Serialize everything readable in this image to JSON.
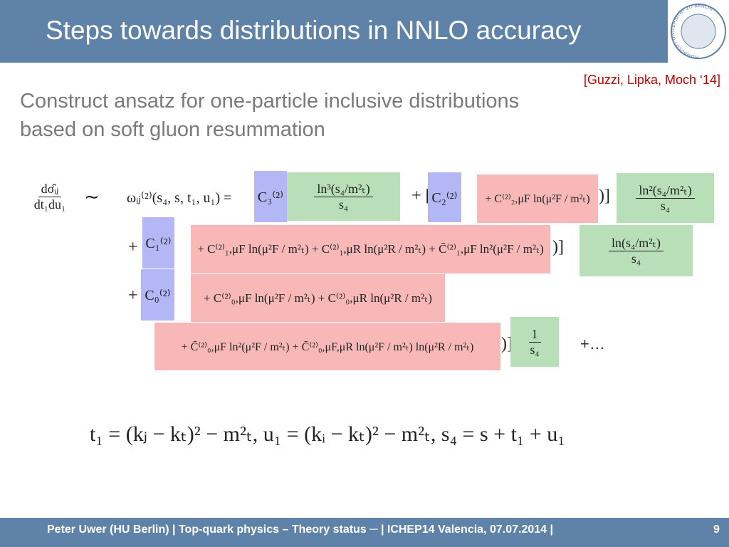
{
  "header": {
    "title": "Steps towards distributions in NNLO accuracy",
    "logo_text": "HUMBOLDT-UNIVERSITÄT ZU BERLIN"
  },
  "citation": "[Guzzi, Lipka, Moch ‘14]",
  "body": {
    "lines": [
      "Construct ansatz for one-particle inclusive distributions",
      "based on soft gluon resummation"
    ]
  },
  "equation": {
    "lhs_num": "dσ̂ᵢⱼ",
    "lhs_den": "dt₁du₁",
    "sim": "∼",
    "omega": "ωᵢⱼ⁽²⁾(s₄, s, t₁, u₁) =",
    "row1": {
      "c3": "C₃⁽²⁾",
      "f1_num": "ln³(s₄/m²ₜ)",
      "f1_den": "s₄",
      "plus_open": "+ [",
      "c2": "C₂⁽²⁾",
      "red": "+ C⁽²⁾₂,μF ln(μ²F / m²ₜ)",
      "close": ")]",
      "f2_num": "ln²(s₄/m²ₜ)",
      "f2_den": "s₄"
    },
    "row2": {
      "plus_open": "+ [",
      "c1": "C₁⁽²⁾",
      "red": "+ C⁽²⁾₁,μF ln(μ²F / m²ₜ) + C⁽²⁾₁,μR ln(μ²R / m²ₜ) + C̄⁽²⁾₁,μF ln²(μ²F / m²ₜ)",
      "close": ")]",
      "f_num": "ln(s₄/m²ₜ)",
      "f_den": "s₄"
    },
    "row3": {
      "plus_open": "+ [",
      "c0": "C₀⁽²⁾",
      "red": "+ C⁽²⁾₀,μF ln(μ²F / m²ₜ) + C⁽²⁾₀,μR ln(μ²R / m²ₜ)"
    },
    "row4": {
      "red": "+ C̄⁽²⁾₀,μF ln²(μ²F / m²ₜ) + C̄⁽²⁾₀,μF,μR ln(μ²F / m²ₜ) ln(μ²R / m²ₜ)",
      "close": ")]",
      "f_num": "1",
      "f_den": "s₄",
      "dots": "+…"
    }
  },
  "definitions": "t₁ = (kⱼ − kₜ)² − m²ₜ,  u₁ = (kᵢ − kₜ)² − m²ₜ,  s₄ = s + t₁ + u₁",
  "footer": {
    "text": "Peter Uwer  (HU Berlin)  |  Top-quark physics – Theory status ─  |  ICHEP14 Valencia,  07.07.2014  |",
    "page": "9"
  }
}
